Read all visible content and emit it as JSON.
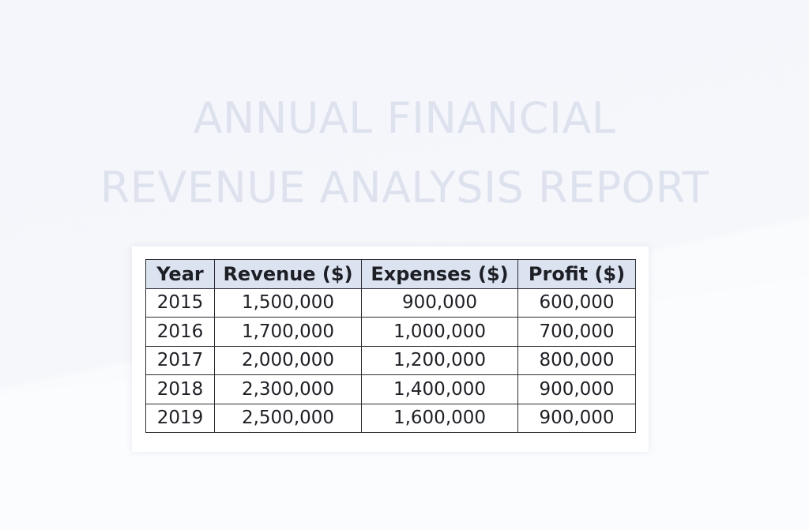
{
  "report": {
    "title_line1": "ANNUAL FINANCIAL",
    "title_line2": "REVENUE ANALYSIS REPORT"
  },
  "table": {
    "headers": [
      "Year",
      "Revenue ($)",
      "Expenses ($)",
      "Profit ($)"
    ],
    "rows": [
      [
        "2015",
        "1,500,000",
        "900,000",
        "600,000"
      ],
      [
        "2016",
        "1,700,000",
        "1,000,000",
        "700,000"
      ],
      [
        "2017",
        "2,000,000",
        "1,200,000",
        "800,000"
      ],
      [
        "2018",
        "2,300,000",
        "1,400,000",
        "900,000"
      ],
      [
        "2019",
        "2,500,000",
        "1,600,000",
        "900,000"
      ]
    ]
  },
  "colors": {
    "title": "#dde2ee",
    "header_fill": "#dbe3f1",
    "border": "#2a2c31",
    "text": "#1d1f24"
  }
}
